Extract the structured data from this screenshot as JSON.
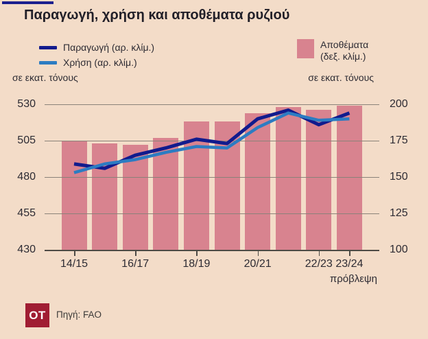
{
  "title": "Παραγωγή, χρήση και αποθέματα ρυζιού",
  "legend": {
    "production": "Παραγωγή (αρ. κλίμ.)",
    "use": "Χρήση (αρ. κλίμ.)",
    "stocks_line1": "Αποθέματα",
    "stocks_line2": "(δεξ. κλίμ.)"
  },
  "axis_units": {
    "left": "σε εκατ. τόνους",
    "right": "σε εκατ. τόνους"
  },
  "footer": {
    "logo": "OT",
    "source": "Πηγή: FAO"
  },
  "colors": {
    "background": "#f3dcc8",
    "bar": "#d8838f",
    "production_line": "#111b8d",
    "use_line": "#2c7cc2",
    "grid": "#8a8279",
    "axis": "#4d4a45",
    "text": "#2d2b33",
    "accent": "#1b1f8e",
    "logo_bg": "#a01d33"
  },
  "chart_data": {
    "type": "bar",
    "subtype": "combo-bar-with-two-lines",
    "categories": [
      "14/15",
      "15/16",
      "16/17",
      "17/18",
      "18/19",
      "19/20",
      "20/21",
      "21/22",
      "22/23",
      "23/24"
    ],
    "x_tick_labels": [
      "14/15",
      "16/17",
      "18/19",
      "20/21",
      "22/23",
      "23/24"
    ],
    "x_tick_indices": [
      0,
      2,
      4,
      6,
      8,
      9
    ],
    "forecast_note": "πρόβλεψη",
    "series": [
      {
        "name": "Παραγωγή (αρ. κλίμ.)",
        "type": "line",
        "axis": "left",
        "values": [
          489,
          486,
          495,
          500,
          506,
          503,
          520,
          526,
          516,
          524
        ]
      },
      {
        "name": "Χρήση (αρ. κλίμ.)",
        "type": "line",
        "axis": "left",
        "values": [
          483,
          489,
          492,
          497,
          501,
          500,
          514,
          524,
          519,
          520
        ]
      },
      {
        "name": "Αποθέματα (δεξ. κλίμ.)",
        "type": "bar",
        "axis": "right",
        "values": [
          175,
          173,
          172,
          177,
          188,
          188,
          194,
          198,
          196,
          199
        ]
      }
    ],
    "left_axis": {
      "min": 430,
      "max": 530,
      "ticks": [
        530,
        505,
        480,
        455,
        430
      ],
      "label": "σε εκατ. τόνους"
    },
    "right_axis": {
      "min": 100,
      "max": 200,
      "ticks": [
        200,
        175,
        150,
        125,
        100
      ],
      "label": "σε εκατ. τόνους"
    },
    "grid": true,
    "legend_position": "top"
  }
}
